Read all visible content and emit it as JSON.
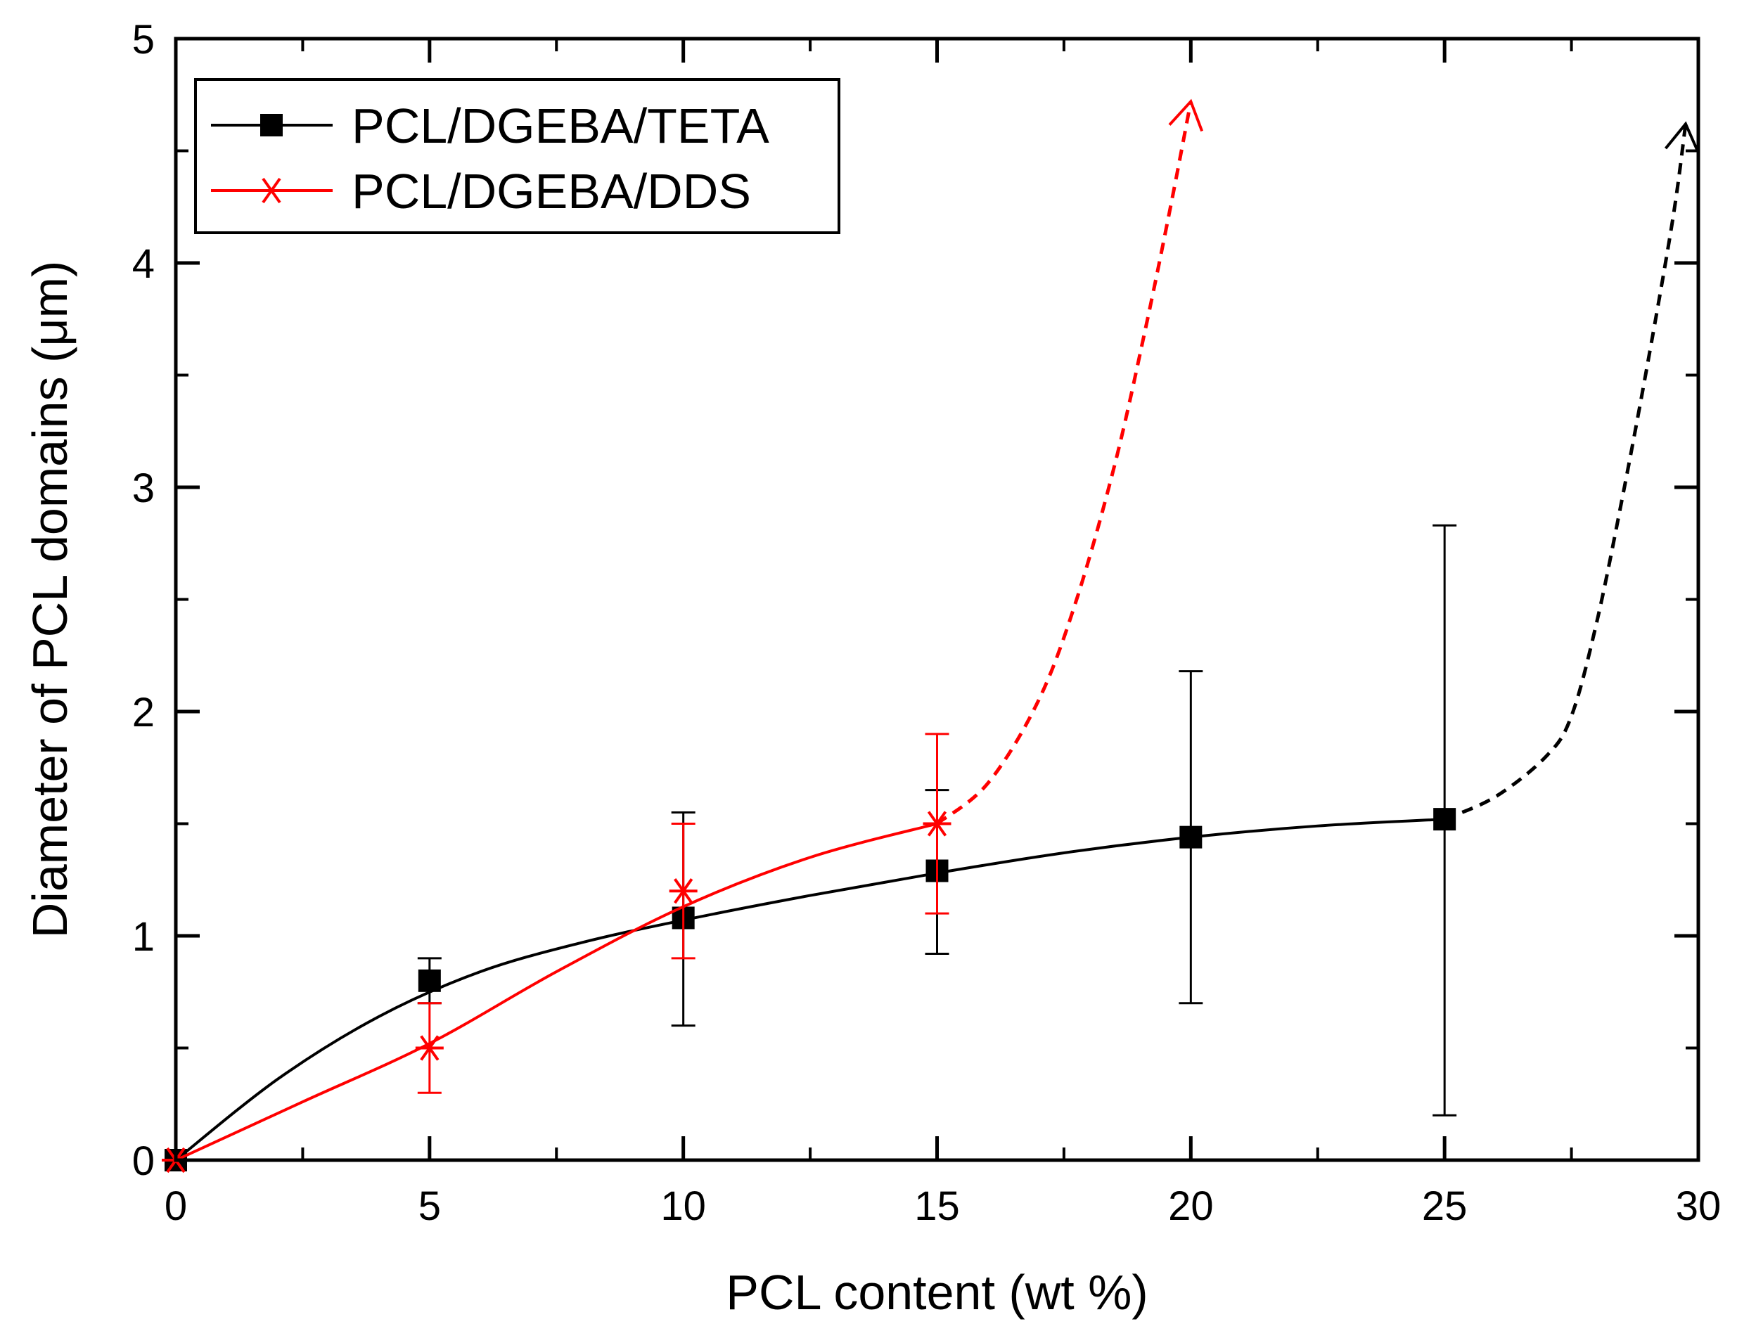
{
  "chart_data": {
    "type": "line",
    "title": "",
    "xlabel": "PCL content (wt %)",
    "ylabel": "Diameter of PCL domains (μm)",
    "xlim": [
      0,
      30
    ],
    "ylim": [
      0,
      5
    ],
    "xticks": [
      0,
      5,
      10,
      15,
      20,
      25,
      30
    ],
    "yticks": [
      0,
      1,
      2,
      3,
      4,
      5
    ],
    "xtick_labels": [
      "0",
      "5",
      "10",
      "15",
      "20",
      "25",
      "30"
    ],
    "ytick_labels": [
      "0",
      "1",
      "2",
      "3",
      "4",
      "5"
    ],
    "grid": false,
    "legend_position": "top-left",
    "series": [
      {
        "name": "PCL/DGEBA/TETA",
        "color": "#000000",
        "marker": "square",
        "x": [
          0,
          5,
          10,
          15,
          20,
          25
        ],
        "y": [
          0,
          0.8,
          1.08,
          1.29,
          1.44,
          1.52
        ],
        "error_low": [
          0,
          0.7,
          0.6,
          0.92,
          0.7,
          0.2
        ],
        "error_high": [
          0,
          0.9,
          1.55,
          1.65,
          2.18,
          2.83
        ],
        "fit_curve": {
          "x": [
            0,
            2,
            4,
            6,
            8,
            10,
            12.5,
            15,
            17.5,
            20,
            22.5,
            25
          ],
          "y": [
            0,
            0.36,
            0.64,
            0.84,
            0.97,
            1.07,
            1.18,
            1.28,
            1.37,
            1.44,
            1.49,
            1.52
          ]
        },
        "extrapolation": {
          "style": "dashed",
          "x": [
            25,
            26,
            27,
            27.5,
            28,
            28.5,
            29,
            29.5,
            29.75
          ],
          "y": [
            1.52,
            1.62,
            1.8,
            1.98,
            2.4,
            2.95,
            3.55,
            4.2,
            4.62
          ]
        },
        "arrow_tip": [
          29.75,
          4.62
        ]
      },
      {
        "name": "PCL/DGEBA/DDS",
        "color": "#ff0000",
        "marker": "asterisk",
        "x": [
          0,
          5,
          10,
          15
        ],
        "y": [
          0,
          0.5,
          1.2,
          1.5
        ],
        "error_low": [
          0,
          0.3,
          0.9,
          1.1
        ],
        "error_high": [
          0,
          0.7,
          1.5,
          1.9
        ],
        "fit_curve": {
          "x": [
            0,
            2.5,
            5,
            7.5,
            10,
            12.5,
            15
          ],
          "y": [
            0,
            0.26,
            0.52,
            0.84,
            1.13,
            1.35,
            1.5
          ]
        },
        "extrapolation": {
          "style": "dashed",
          "x": [
            15,
            16,
            17,
            17.75,
            18.5,
            19.1,
            19.6,
            20
          ],
          "y": [
            1.5,
            1.68,
            2.05,
            2.5,
            3.1,
            3.7,
            4.25,
            4.72
          ]
        },
        "arrow_tip": [
          20,
          4.72
        ]
      }
    ]
  }
}
